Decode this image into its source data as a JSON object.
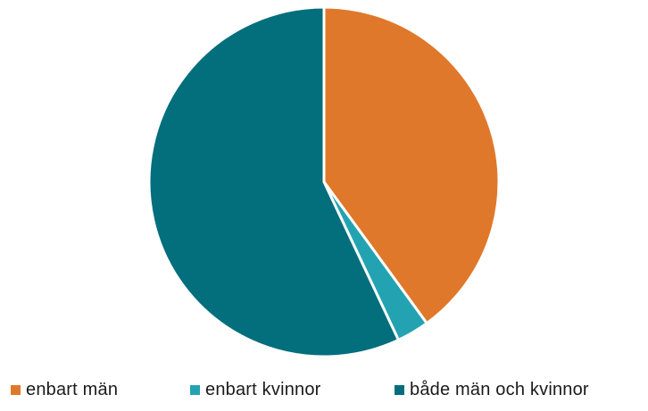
{
  "chart_data": {
    "type": "pie",
    "categories": [
      "enbart män",
      "enbart kvinnor",
      "både män och kvinnor"
    ],
    "values": [
      40,
      3,
      57
    ],
    "colors": [
      "#e0782b",
      "#23a3b2",
      "#036e7c"
    ],
    "legend_position": "bottom",
    "start_angle": "12 o'clock, clockwise"
  }
}
